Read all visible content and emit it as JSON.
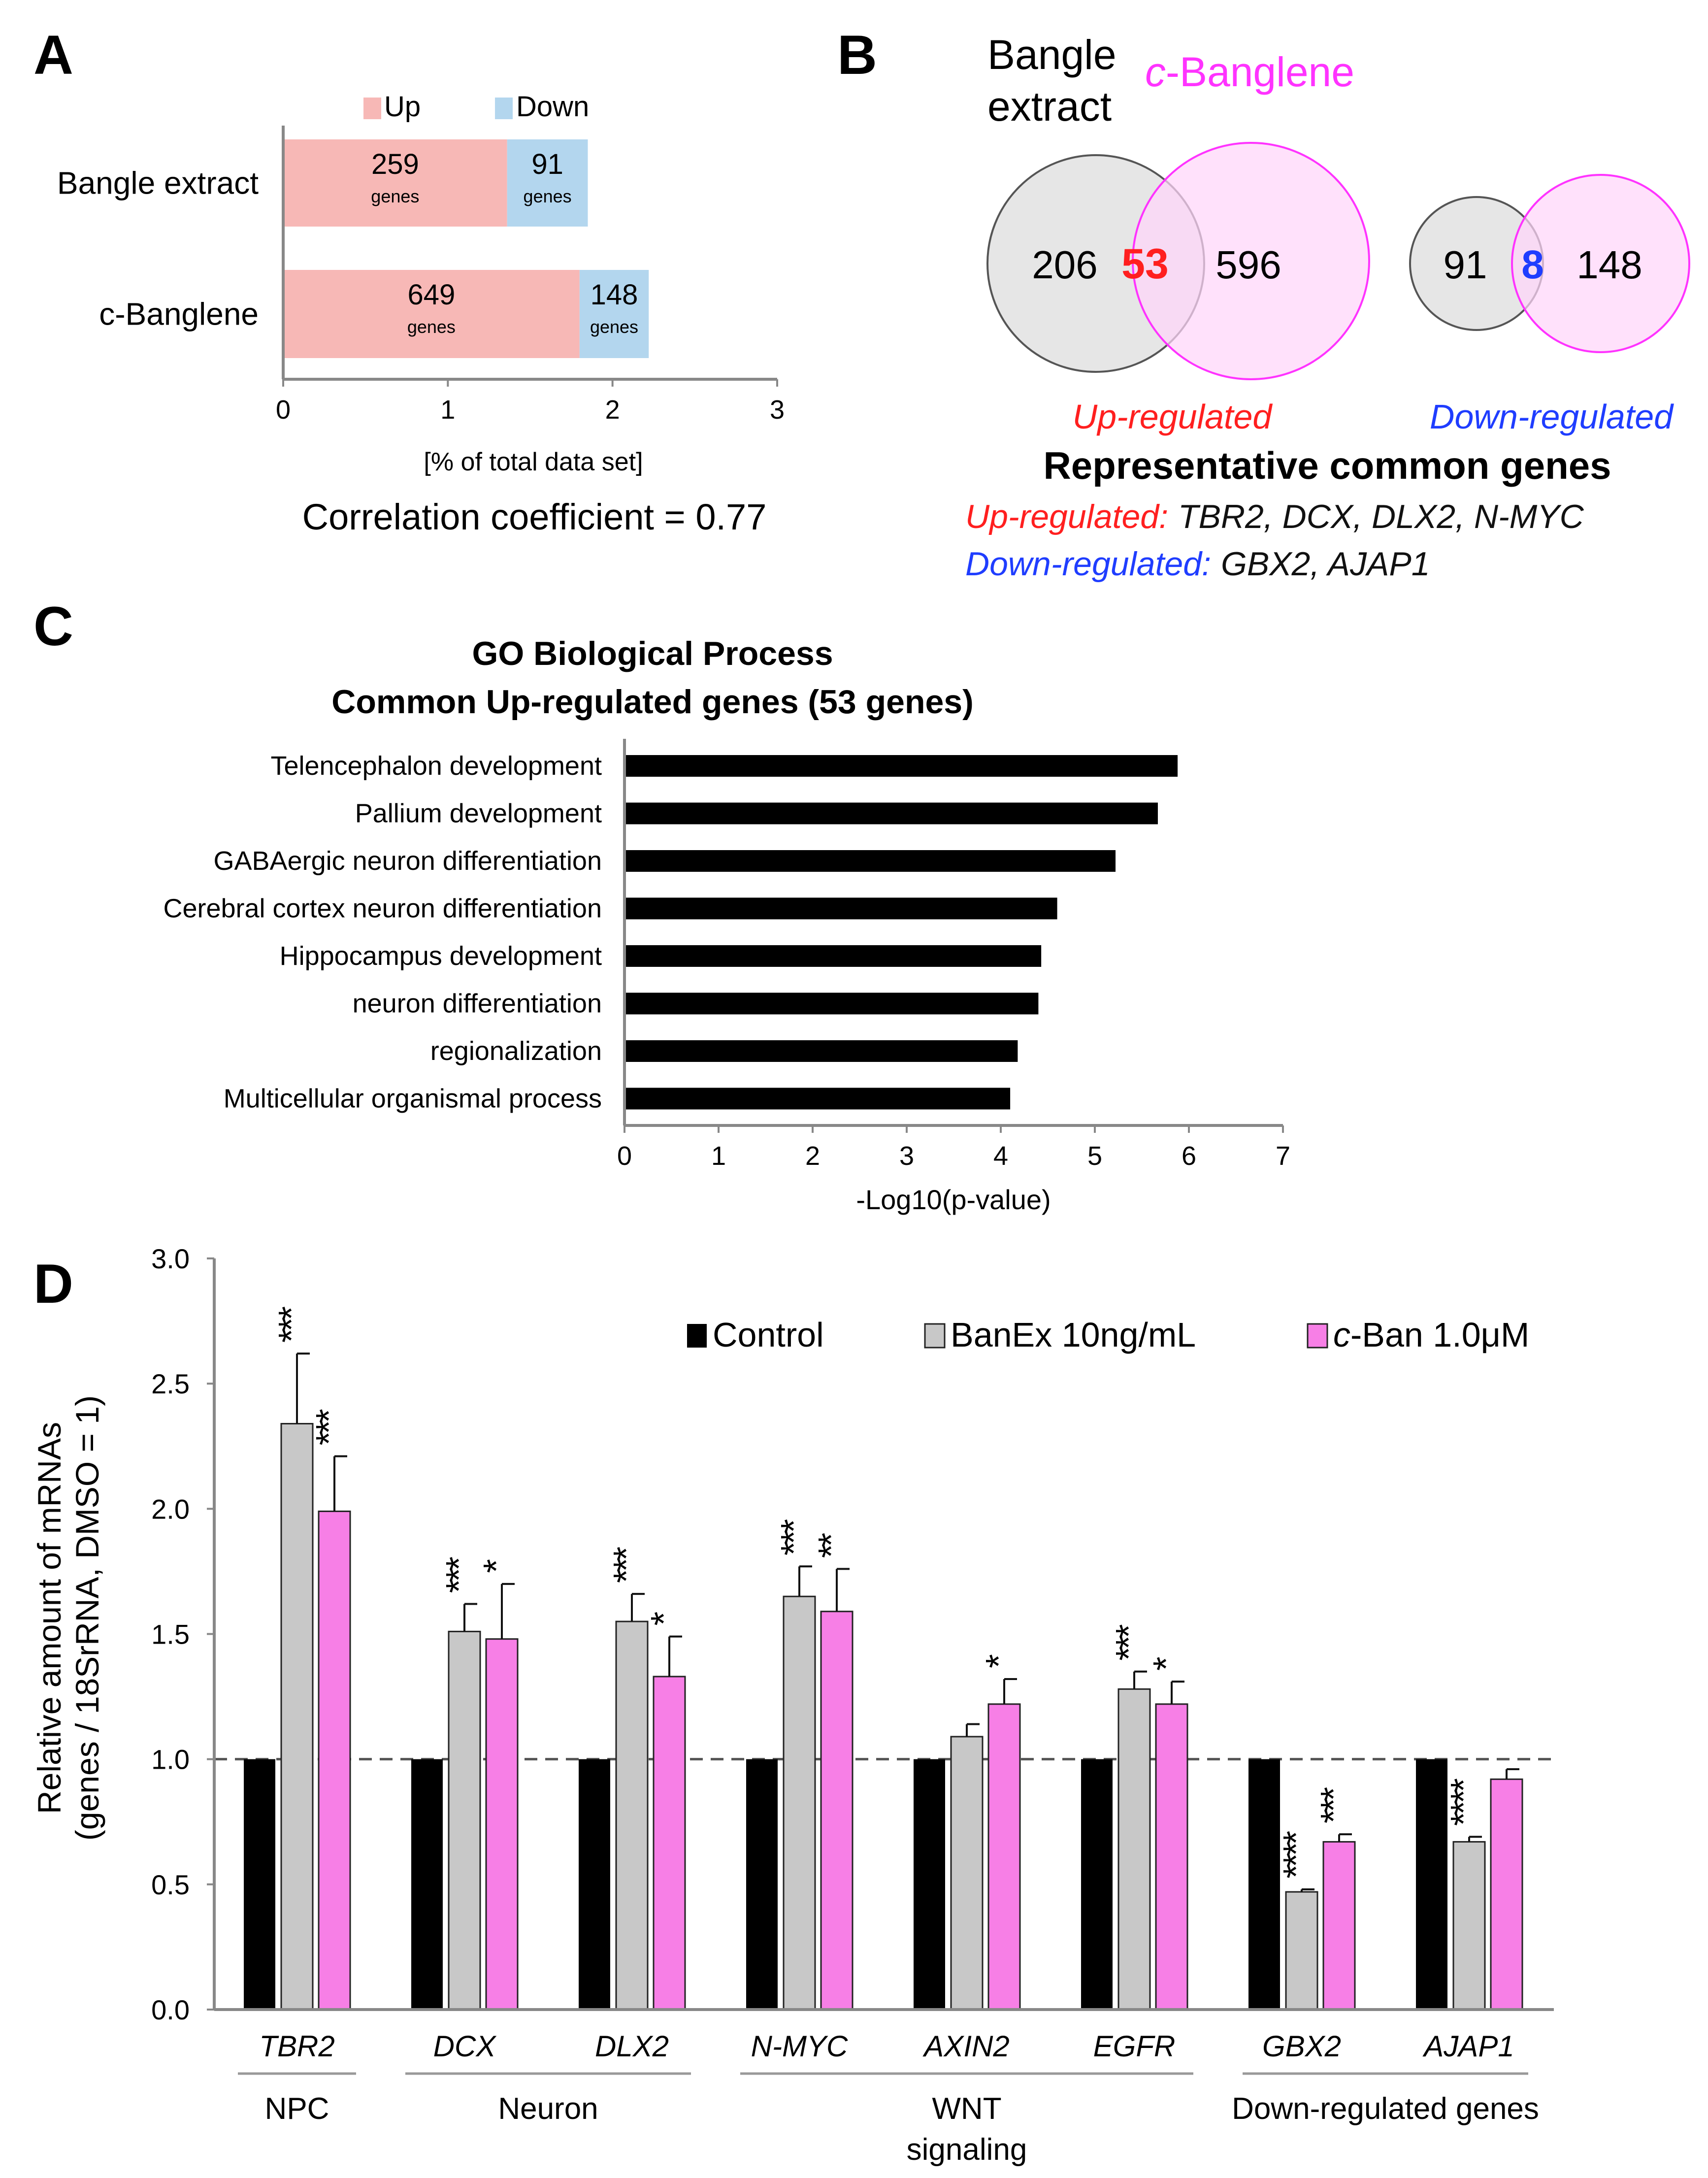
{
  "panel_labels": {
    "a": "A",
    "b": "B",
    "c": "C",
    "d": "D"
  },
  "colors": {
    "up": "#f7b8b6",
    "down": "#b3d6ee",
    "red": "#ff1f1f",
    "blue": "#1f3dff",
    "magenta": "#ff33ff",
    "venn_gray": "#e6e6e6",
    "venn_pink": "#ffd6fa",
    "control": "#000000",
    "banex": "#c8c8c8",
    "cban": "#f77fe6"
  },
  "panel_b": {
    "set1_label_line1": "Bangle",
    "set1_label_line2": "extract",
    "set2_label_prefix": "c",
    "set2_label_rest": "-Banglene",
    "up": {
      "only1": "206",
      "common": "53",
      "only2": "596",
      "label": "Up-regulated"
    },
    "down": {
      "only1": "91",
      "common": "8",
      "only2": "148",
      "label": "Down-regulated"
    },
    "title": "Representative common genes",
    "up_prefix": "Up-regulated:",
    "up_genes": "TBR2, DCX, DLX2, N-MYC",
    "down_prefix": "Down-regulated:",
    "down_genes": "GBX2, AJAP1"
  },
  "chart_data": [
    {
      "panel": "A",
      "type": "bar",
      "orientation": "horizontal",
      "stacked": true,
      "categories": [
        "Bangle extract",
        "c-Banglene"
      ],
      "series": [
        {
          "name": "Up",
          "values": [
            1.36,
            1.8
          ],
          "labels": [
            "259",
            "649"
          ]
        },
        {
          "name": "Down",
          "values": [
            0.49,
            0.42
          ],
          "labels": [
            "91",
            "148"
          ]
        }
      ],
      "value_sublabel": "genes",
      "xlabel": "[% of total data set]",
      "xlim": [
        0,
        3
      ],
      "xticks": [
        "0",
        "1",
        "2",
        "3"
      ],
      "legend": "top",
      "note": "Correlation coefficient = 0.77"
    },
    {
      "panel": "C",
      "type": "bar",
      "orientation": "horizontal",
      "title": "GO Biological Process",
      "subtitle": "Common Up-regulated genes (53 genes)",
      "categories": [
        "Telencephalon development",
        "Pallium development",
        "GABAergic neuron differentiation",
        "Cerebral cortex neuron differentiation",
        "Hippocampus development",
        "neuron differentiation",
        "regionalization",
        "Multicellular organismal process"
      ],
      "values": [
        5.88,
        5.67,
        5.22,
        4.6,
        4.43,
        4.4,
        4.18,
        4.1
      ],
      "xlabel": "-Log10(p-value)",
      "xlim": [
        0,
        7
      ],
      "xticks": [
        "0",
        "1",
        "2",
        "3",
        "4",
        "5",
        "6",
        "7"
      ]
    },
    {
      "panel": "D",
      "type": "bar",
      "categories": [
        "TBR2",
        "DCX",
        "DLX2",
        "N-MYC",
        "AXIN2",
        "EGFR",
        "GBX2",
        "AJAP1"
      ],
      "series": [
        {
          "name": "Control",
          "values": [
            1.0,
            1.0,
            1.0,
            1.0,
            1.0,
            1.0,
            1.0,
            1.0
          ],
          "errors": [
            0,
            0,
            0,
            0,
            0,
            0,
            0,
            0
          ],
          "sig": [
            "",
            "",
            "",
            "",
            "",
            "",
            "",
            ""
          ]
        },
        {
          "name": "BanEx 10ng/mL",
          "values": [
            2.34,
            1.51,
            1.55,
            1.65,
            1.09,
            1.28,
            0.47,
            0.67
          ],
          "errors": [
            0.28,
            0.11,
            0.11,
            0.12,
            0.05,
            0.07,
            0.01,
            0.02
          ],
          "sig": [
            "***",
            "***",
            "***",
            "***",
            "",
            "***",
            "****",
            "****"
          ]
        },
        {
          "name": "c-Ban 1.0μM",
          "values": [
            1.99,
            1.48,
            1.33,
            1.59,
            1.22,
            1.22,
            0.67,
            0.92
          ],
          "errors": [
            0.22,
            0.22,
            0.16,
            0.17,
            0.1,
            0.09,
            0.03,
            0.04
          ],
          "sig": [
            "***",
            "*",
            "*",
            "**",
            "*",
            "*",
            "***",
            ""
          ]
        }
      ],
      "legend_labels": [
        "Control",
        "BanEx 10ng/mL",
        "c-Ban 1.0μM"
      ],
      "ylabel_line1": "Relative amount of mRNAs",
      "ylabel_line2": "(genes / 18SrRNA, DMSO = 1)",
      "ylim": [
        0,
        3
      ],
      "yticks": [
        "0.0",
        "0.5",
        "1.0",
        "1.5",
        "2.0",
        "2.5",
        "3.0"
      ],
      "reference_line": 1.0,
      "groups": [
        {
          "label": "NPC",
          "members": [
            0
          ]
        },
        {
          "label": "Neuron",
          "members": [
            1,
            2
          ]
        },
        {
          "label": "WNT",
          "label2": "signaling",
          "members": [
            3,
            4,
            5
          ]
        },
        {
          "label": "Down-regulated genes",
          "members": [
            6,
            7
          ]
        }
      ]
    }
  ]
}
